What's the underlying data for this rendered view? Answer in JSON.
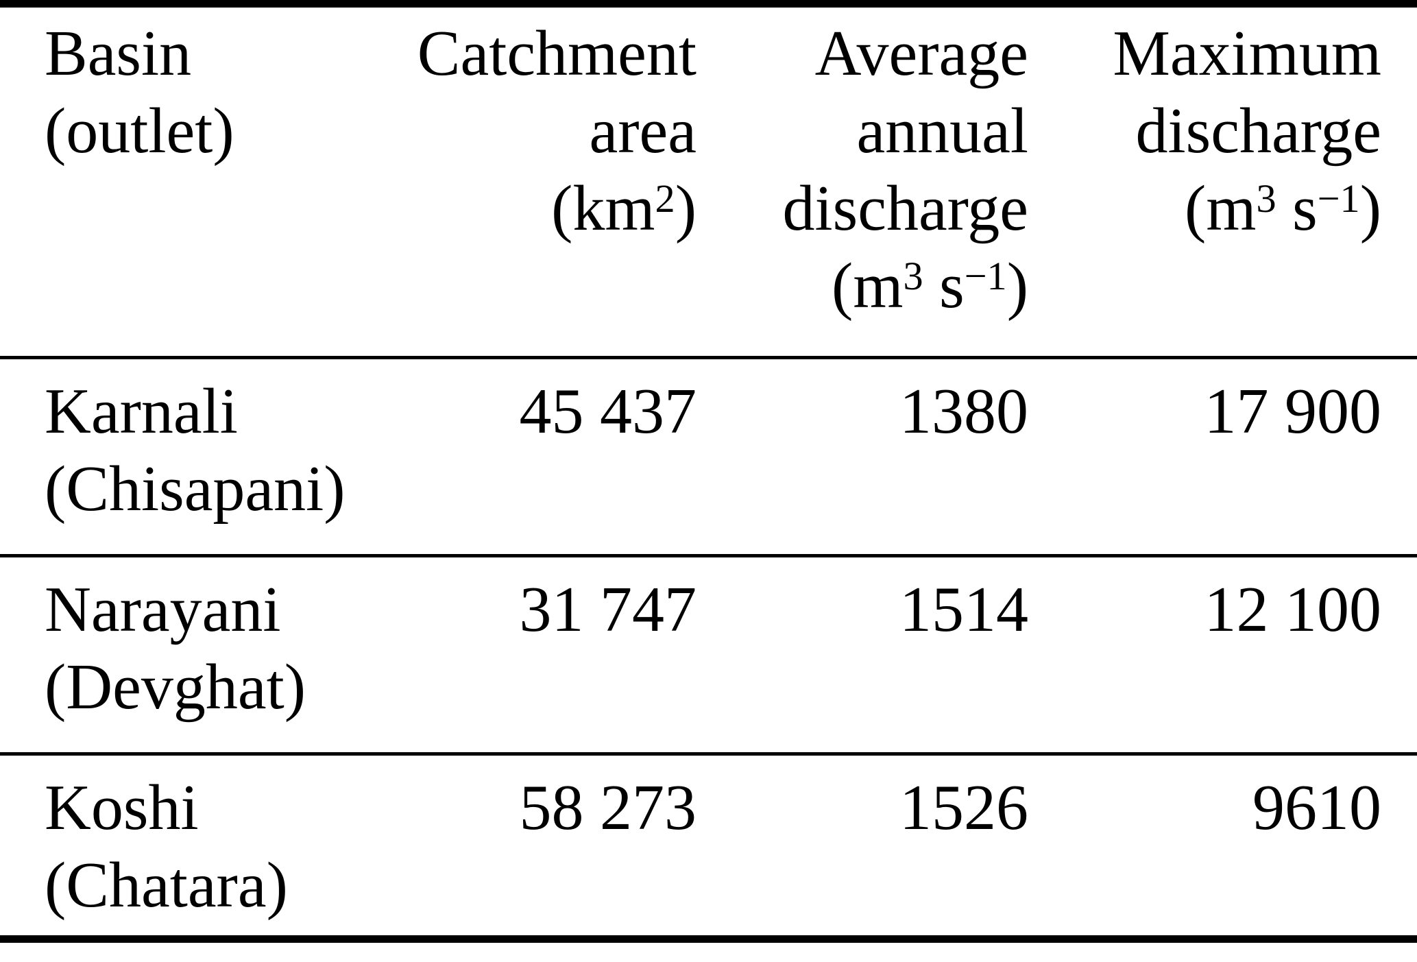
{
  "document": {
    "kind": "journal-table",
    "background_color": "#ffffff",
    "text_color": "#000000",
    "rule_color": "#000000"
  },
  "table": {
    "columns": [
      {
        "id": "basin",
        "align": "left",
        "header_lines": [
          "Basin",
          "(outlet)"
        ]
      },
      {
        "id": "catchment_area",
        "align": "right",
        "header_lines": [
          "Catchment",
          "area",
          "(km^{2})"
        ]
      },
      {
        "id": "avg_annual_discharge",
        "align": "right",
        "header_lines": [
          "Average",
          "annual",
          "discharge",
          "(m^{3} s^{−1})"
        ]
      },
      {
        "id": "max_discharge",
        "align": "right",
        "header_lines": [
          "Maximum",
          "discharge",
          "(m^{3} s^{−1})"
        ]
      }
    ],
    "rows": [
      {
        "basin_lines": [
          "Karnali",
          "(Chisapani)"
        ],
        "catchment_area": "45 437",
        "avg_annual_discharge": "1380",
        "max_discharge": "17 900"
      },
      {
        "basin_lines": [
          "Narayani",
          "(Devghat)"
        ],
        "catchment_area": "31 747",
        "avg_annual_discharge": "1514",
        "max_discharge": "12 100"
      },
      {
        "basin_lines": [
          "Koshi",
          "(Chatara)"
        ],
        "catchment_area": "58 273",
        "avg_annual_discharge": "1526",
        "max_discharge": "9610"
      }
    ]
  }
}
